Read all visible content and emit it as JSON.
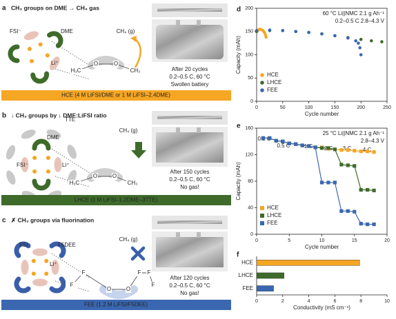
{
  "panels": [
    {
      "label": "a",
      "title": "CH₃ groups on DME → CH₄ gas",
      "species": [
        "FSI⁻",
        "DME",
        "Li⁺"
      ],
      "gas": "CH₄ (g)",
      "molecule": [
        "H₃C",
        "O",
        "O",
        "CH₃"
      ],
      "caption": [
        "After 20 cycles",
        "0.2–0.5 C, 60 °C",
        "Swollen battery"
      ],
      "electrolyte": "HCE (4 M LiFSI/DME or 1 M LiFSI–2.4DME)"
    },
    {
      "label": "b",
      "title": "↓ CH₃ groups by ↓ DME:LiFSI ratio",
      "species": [
        "TTE",
        "DME",
        "FSI⁻",
        "Li⁺"
      ],
      "gas": "CH₄ (g)",
      "molecule": [
        "H₃C",
        "O",
        "O",
        "CH₃"
      ],
      "caption": [
        "After 150 cycles",
        "0.2–0.5 C, 60 °C",
        "No gas!"
      ],
      "electrolyte": "LHCE (1 M LiFSI–1.2DME–3TTE)"
    },
    {
      "label": "c",
      "title": "✗ CH₃ groups via fluorination",
      "species": [
        "FSI⁻",
        "F5DEE",
        "Li⁺"
      ],
      "gas": "CH₄ (g)",
      "molecule": [
        "F",
        "F",
        "O",
        "O",
        "F",
        "F",
        "F"
      ],
      "caption": [
        "After 120 cycles",
        "0.2–0.5 C, 60 °C",
        "No gas!"
      ],
      "electrolyte": "FEE (1.2 M LiFSI/F5DEE)"
    }
  ],
  "chart_data": [
    {
      "type": "scatter",
      "panel": "d",
      "xlabel": "Cycle number",
      "ylabel": "Capacity (mAh)",
      "annotations": [
        "60 °C Li||NMC 2.1 g Ah⁻¹",
        "0.2–0.5 C 2.8–4.3 V"
      ],
      "xlim": [
        0,
        250
      ],
      "xticks": [
        0,
        50,
        100,
        150,
        200,
        250
      ],
      "ylim": [
        0,
        200
      ],
      "yticks": [
        0,
        50,
        100,
        150,
        200
      ],
      "legend": "lower left",
      "series": [
        {
          "name": "HCE",
          "color": "#f5a623",
          "x": [
            0,
            3,
            6,
            9,
            12,
            15,
            17,
            18
          ],
          "values": [
            150,
            153,
            155,
            154,
            152,
            148,
            143,
            138
          ]
        },
        {
          "name": "LHCE",
          "color": "#3e6b2a",
          "x": [
            0,
            25,
            50,
            75,
            100,
            125,
            150,
            175,
            200,
            220,
            240
          ],
          "values": [
            150,
            152,
            152,
            150,
            148,
            145,
            141,
            137,
            133,
            130,
            128
          ]
        },
        {
          "name": "FEE",
          "color": "#3a67b0",
          "x": [
            0,
            25,
            50,
            75,
            100,
            125,
            150,
            175,
            190,
            195,
            198,
            200
          ],
          "values": [
            152,
            153,
            152,
            150,
            148,
            145,
            141,
            136,
            130,
            125,
            115,
            100
          ]
        }
      ]
    },
    {
      "type": "line",
      "panel": "e",
      "xlabel": "Cycle number",
      "ylabel": "Capacity (mAh)",
      "annotations": [
        "25 °C Li||NMC 2.1 g Ah⁻¹",
        "2.8–4.3 V"
      ],
      "rate_labels": [
        "0.2 C",
        "0.5 C",
        "1 C",
        "2 C",
        "3 C",
        "4 C"
      ],
      "xlim": [
        0,
        20
      ],
      "xticks": [
        0,
        5,
        10,
        15,
        20
      ],
      "ylim": [
        0,
        160
      ],
      "yticks": [
        0,
        40,
        80,
        120,
        160
      ],
      "legend": "lower left",
      "x": [
        1,
        2,
        3,
        4,
        5,
        6,
        7,
        8,
        9,
        10,
        11,
        12,
        13,
        14,
        15,
        16,
        17,
        18
      ],
      "series": [
        {
          "name": "HCE",
          "color": "#f5a623",
          "values": [
            145,
            145,
            141,
            140,
            137,
            136,
            134,
            133,
            131,
            131,
            129,
            128,
            127,
            127,
            126,
            125,
            125,
            124
          ]
        },
        {
          "name": "LHCE",
          "color": "#3e6b2a",
          "values": [
            145,
            145,
            141,
            140,
            137,
            136,
            134,
            133,
            131,
            130,
            130,
            128,
            105,
            104,
            103,
            67,
            67,
            66
          ]
        },
        {
          "name": "FEE",
          "color": "#3a67b0",
          "values": [
            145,
            145,
            141,
            140,
            137,
            136,
            134,
            133,
            131,
            78,
            78,
            78,
            35,
            35,
            34,
            16,
            15,
            15
          ]
        }
      ]
    },
    {
      "type": "barh",
      "panel": "f",
      "xlabel": "Conductivity (mS cm⁻¹)",
      "categories": [
        "HCE",
        "LHCE",
        "FEE"
      ],
      "values": [
        7.9,
        2.1,
        1.3
      ],
      "colors": [
        "#f5a623",
        "#3e6b2a",
        "#3a67b0"
      ],
      "xlim": [
        0,
        10
      ],
      "xticks": [
        0,
        2,
        4,
        6,
        8,
        10
      ]
    }
  ]
}
